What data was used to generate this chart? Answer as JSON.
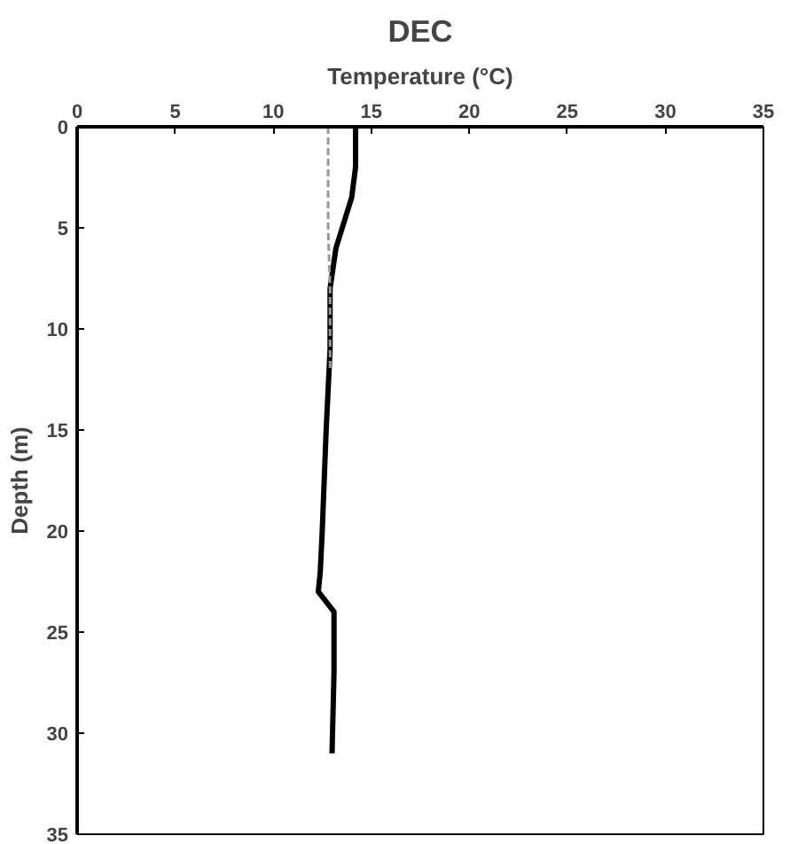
{
  "chart_data": {
    "type": "line",
    "title": "DEC",
    "xlabel": "Temperature (°C)",
    "ylabel": "Depth (m)",
    "xlim": [
      0,
      35
    ],
    "xticks": [
      0,
      5,
      10,
      15,
      20,
      25,
      30,
      35
    ],
    "ylim": [
      35,
      0
    ],
    "yticks": [
      0,
      5,
      10,
      15,
      20,
      25,
      30,
      35
    ],
    "grid": false,
    "series": [
      {
        "color": "#000000",
        "line_style": "solid",
        "x": [
          14.2,
          14.2,
          14.0,
          13.2,
          12.9,
          12.9,
          12.7,
          12.5,
          12.4,
          12.3,
          13.1,
          13.1,
          13.0
        ],
        "values": [
          0,
          2,
          3.5,
          6,
          8,
          11,
          15,
          20,
          22,
          23,
          24,
          27,
          31
        ]
      },
      {
        "color": "#999999",
        "line_style": "dashed",
        "x": [
          12.8,
          12.8,
          12.9,
          12.9
        ],
        "values": [
          0,
          5,
          8,
          12
        ]
      }
    ]
  }
}
